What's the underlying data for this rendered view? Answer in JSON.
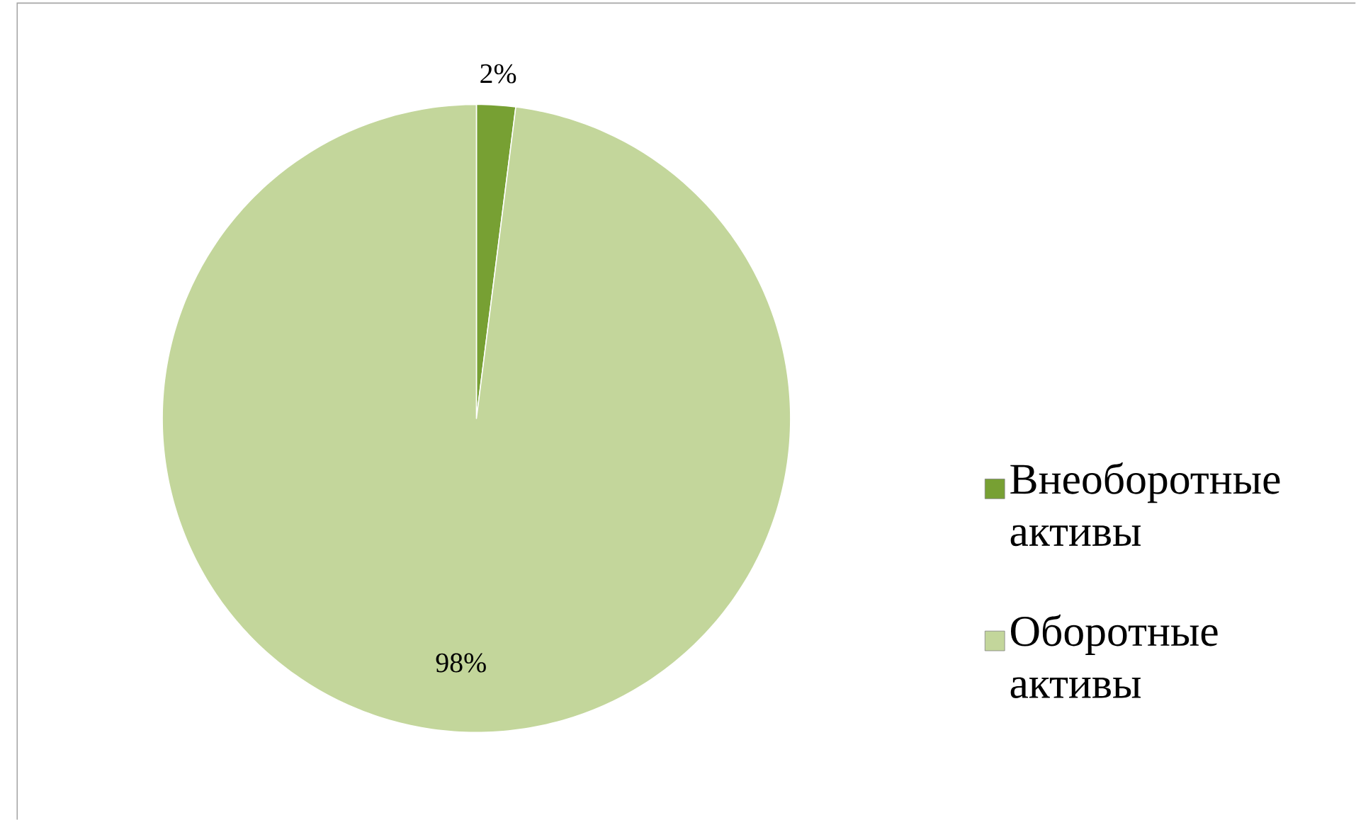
{
  "chart_data": {
    "type": "pie",
    "categories": [
      "Внеоборотные активы",
      "Оборотные активы"
    ],
    "values": [
      2,
      98
    ],
    "colors": [
      "#77a033",
      "#c3d69b"
    ],
    "value_labels": [
      "2%",
      "98%"
    ],
    "legend": "right"
  }
}
